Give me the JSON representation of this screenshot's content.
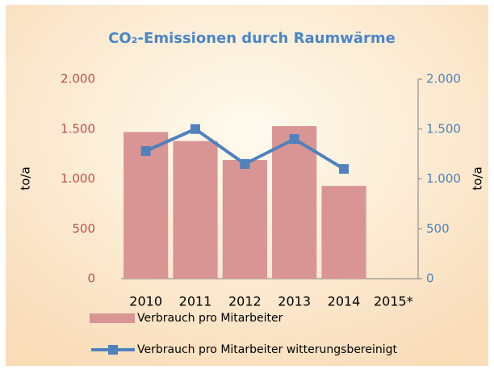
{
  "chart_data": {
    "type": "bar_line",
    "title": "CO₂-Emissionen durch Raumwärme",
    "ylabel": "to/a",
    "y2label": "to/a",
    "categories": [
      "2010",
      "2011",
      "2012",
      "2013",
      "2014",
      "2015*"
    ],
    "series": [
      {
        "name": "Verbrauch pro Mitarbeiter",
        "type": "bar",
        "color": "#d99594",
        "values": [
          1470,
          1380,
          1190,
          1530,
          930,
          null
        ]
      },
      {
        "name": "Verbrauch pro Mitarbeiter witterungsbereinigt",
        "type": "line",
        "axis": "y2",
        "color": "#4f81bd",
        "values": [
          1280,
          1500,
          1150,
          1400,
          1100,
          null
        ]
      }
    ],
    "ylim": [
      0,
      2000
    ],
    "yticks": [
      0,
      500,
      {
        "value": 1000,
        "label": "1.000"
      },
      {
        "value": 1500,
        "label": "1.500"
      },
      {
        "value": 2000,
        "label": "2.000"
      }
    ],
    "y2lim": [
      0,
      2000
    ],
    "y2ticks": [
      0,
      500,
      {
        "value": 1000,
        "label": "1.000"
      },
      {
        "value": 1500,
        "label": "1.500"
      },
      {
        "value": 2000,
        "label": "2.000"
      }
    ],
    "grid": false,
    "legend": "bottom"
  }
}
